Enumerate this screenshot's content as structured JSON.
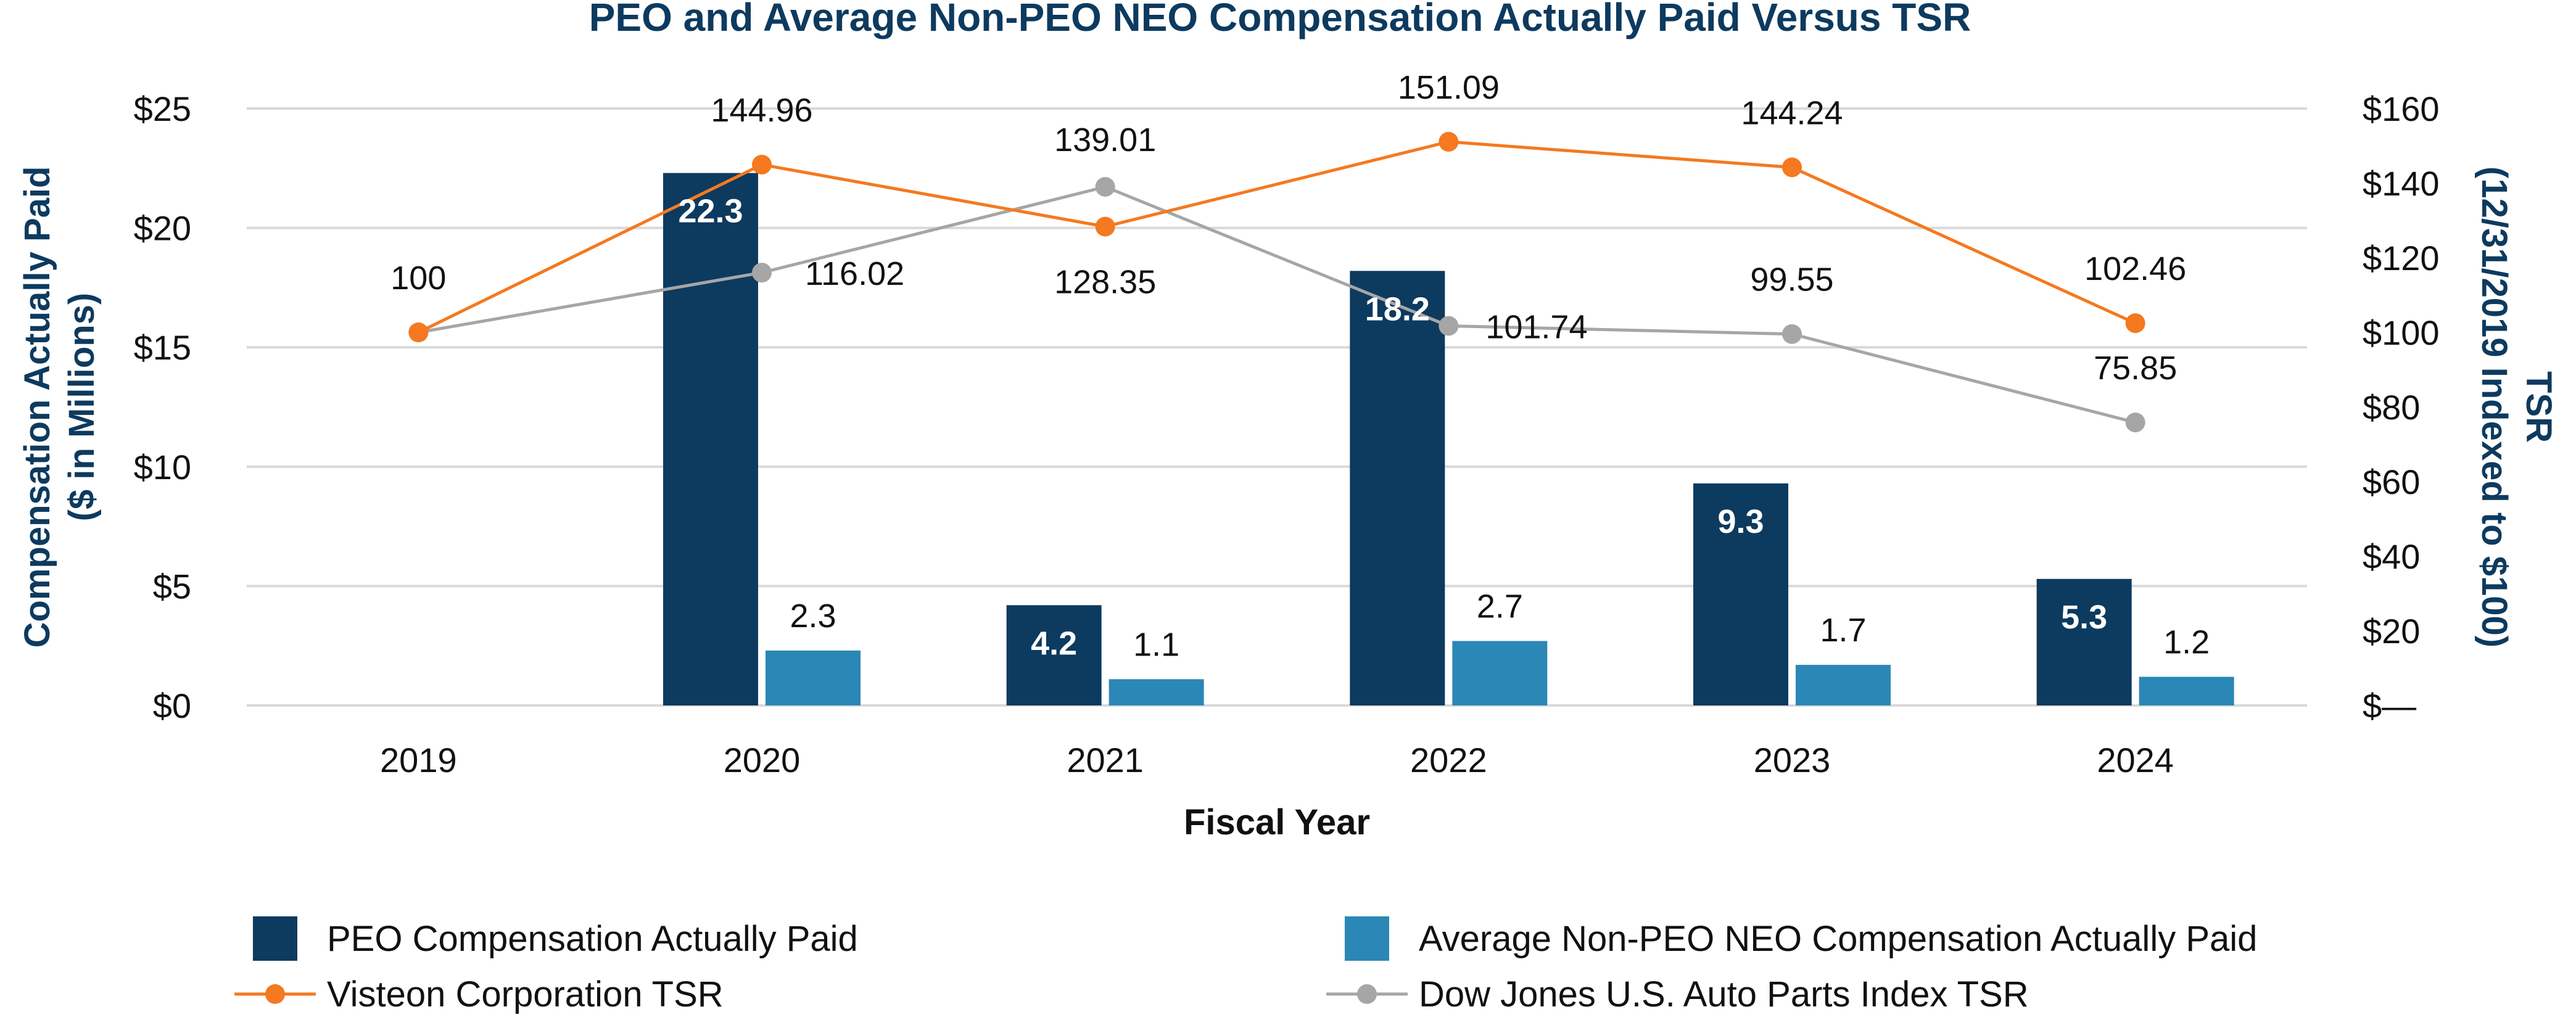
{
  "chart_data": {
    "type": "bar",
    "title": "PEO and Average Non-PEO NEO Compensation Actually Paid Versus TSR",
    "xlabel": "Fiscal Year",
    "ylabel_line1": "Compensation Actually Paid",
    "ylabel_line2": "($ in Millions)",
    "y2label_line1": "TSR",
    "y2label_line2": "(12/31/2019 Indexed to $100)",
    "categories": [
      "2019",
      "2020",
      "2021",
      "2022",
      "2023",
      "2024"
    ],
    "ylim": [
      0,
      25
    ],
    "y_ticks": [
      0,
      5,
      10,
      15,
      20,
      25
    ],
    "y_tick_labels": [
      "$0",
      "$5",
      "$10",
      "$15",
      "$20",
      "$25"
    ],
    "y2lim": [
      0,
      160
    ],
    "y2_ticks": [
      0,
      20,
      40,
      60,
      80,
      100,
      120,
      140,
      160
    ],
    "y2_tick_labels": [
      "$—",
      "$20",
      "$40",
      "$60",
      "$80",
      "$100",
      "$120",
      "$140",
      "$160"
    ],
    "grid": true,
    "bar_series": [
      {
        "name": "PEO Compensation Actually Paid",
        "color": "#0d3a5f",
        "values": [
          null,
          22.3,
          4.2,
          18.2,
          9.3,
          5.3
        ],
        "labels": [
          "",
          "22.3",
          "4.2",
          "18.2",
          "9.3",
          "5.3"
        ]
      },
      {
        "name": "Average Non-PEO NEO Compensation Actually Paid",
        "color": "#2b87b6",
        "values": [
          null,
          2.3,
          1.1,
          2.7,
          1.7,
          1.2
        ],
        "labels": [
          "",
          "2.3",
          "1.1",
          "2.7",
          "1.7",
          "1.2"
        ]
      }
    ],
    "line_series": [
      {
        "name": "Visteon Corporation TSR",
        "color": "#f47920",
        "axis": "right",
        "values": [
          100,
          144.96,
          128.35,
          151.09,
          144.24,
          102.46
        ],
        "labels": [
          "100",
          "144.96",
          "128.35",
          "151.09",
          "144.24",
          "102.46"
        ]
      },
      {
        "name": "Dow Jones U.S. Auto Parts Index TSR",
        "color": "#a6a6a6",
        "axis": "right",
        "values": [
          100,
          116.02,
          139.01,
          101.74,
          99.55,
          75.85
        ],
        "labels": [
          "",
          "116.02",
          "139.01",
          "101.74",
          "99.55",
          "75.85"
        ]
      }
    ],
    "legend": [
      {
        "label": "PEO Compensation Actually Paid",
        "kind": "bar",
        "color": "#0d3a5f"
      },
      {
        "label": "Average Non-PEO NEO Compensation Actually Paid",
        "kind": "bar",
        "color": "#2b87b6"
      },
      {
        "label": "Visteon Corporation TSR",
        "kind": "line",
        "color": "#f47920"
      },
      {
        "label": "Dow Jones U.S. Auto Parts Index TSR",
        "kind": "line",
        "color": "#a6a6a6"
      }
    ],
    "legend_position": "bottom"
  }
}
